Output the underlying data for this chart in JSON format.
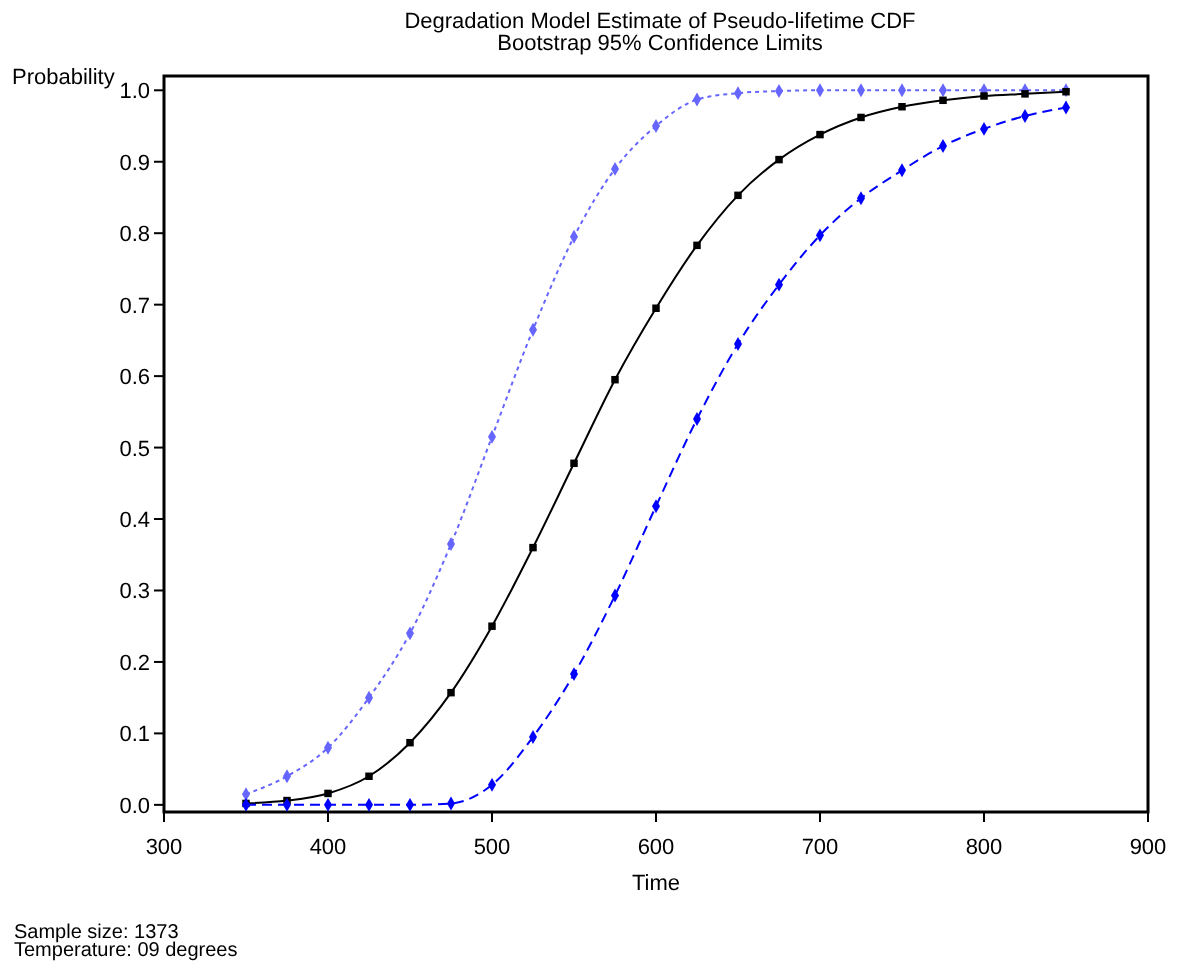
{
  "chart_data": {
    "type": "line",
    "title": "Degradation Model Estimate of Pseudo-lifetime CDF",
    "subtitle": "Bootstrap 95% Confidence Limits",
    "xlabel": "Time",
    "ylabel": "Probability",
    "x": [
      350,
      375,
      400,
      425,
      450,
      475,
      500,
      525,
      550,
      575,
      600,
      625,
      650,
      675,
      700,
      725,
      750,
      775,
      800,
      825,
      850
    ],
    "series": [
      {
        "color": "#6666ff",
        "line_style": "dotted",
        "marker": "diamond",
        "values": [
          0.015,
          0.04,
          0.08,
          0.15,
          0.24,
          0.365,
          0.515,
          0.665,
          0.795,
          0.89,
          0.95,
          0.987,
          0.996,
          0.999,
          1,
          1,
          1,
          1,
          1,
          1,
          1
        ]
      },
      {
        "color": "#000000",
        "line_style": "solid",
        "marker": "square",
        "values": [
          0.002,
          0.006,
          0.016,
          0.04,
          0.087,
          0.157,
          0.25,
          0.36,
          0.478,
          0.595,
          0.695,
          0.783,
          0.853,
          0.903,
          0.938,
          0.962,
          0.977,
          0.986,
          0.992,
          0.995,
          0.998
        ]
      },
      {
        "color": "#0000ff",
        "line_style": "dashed",
        "marker": "diamond",
        "values": [
          0,
          0,
          0,
          0,
          0,
          0.002,
          0.028,
          0.095,
          0.183,
          0.293,
          0.418,
          0.54,
          0.645,
          0.728,
          0.797,
          0.849,
          0.888,
          0.922,
          0.946,
          0.964,
          0.976
        ]
      }
    ],
    "xlim": [
      300,
      900
    ],
    "xticks": [
      300,
      400,
      500,
      600,
      700,
      800,
      900
    ],
    "ylim": [
      -0.01,
      1.02
    ],
    "yticks": [
      {
        "value": 0,
        "label": "0.0"
      },
      0.1,
      0.2,
      0.3,
      0.4,
      0.5,
      0.6,
      0.7,
      0.8,
      0.9,
      {
        "value": 1,
        "label": "1.0"
      }
    ],
    "grid": false,
    "annotations": [
      "Sample size: 1373",
      "Temperature: 09 degrees"
    ]
  }
}
